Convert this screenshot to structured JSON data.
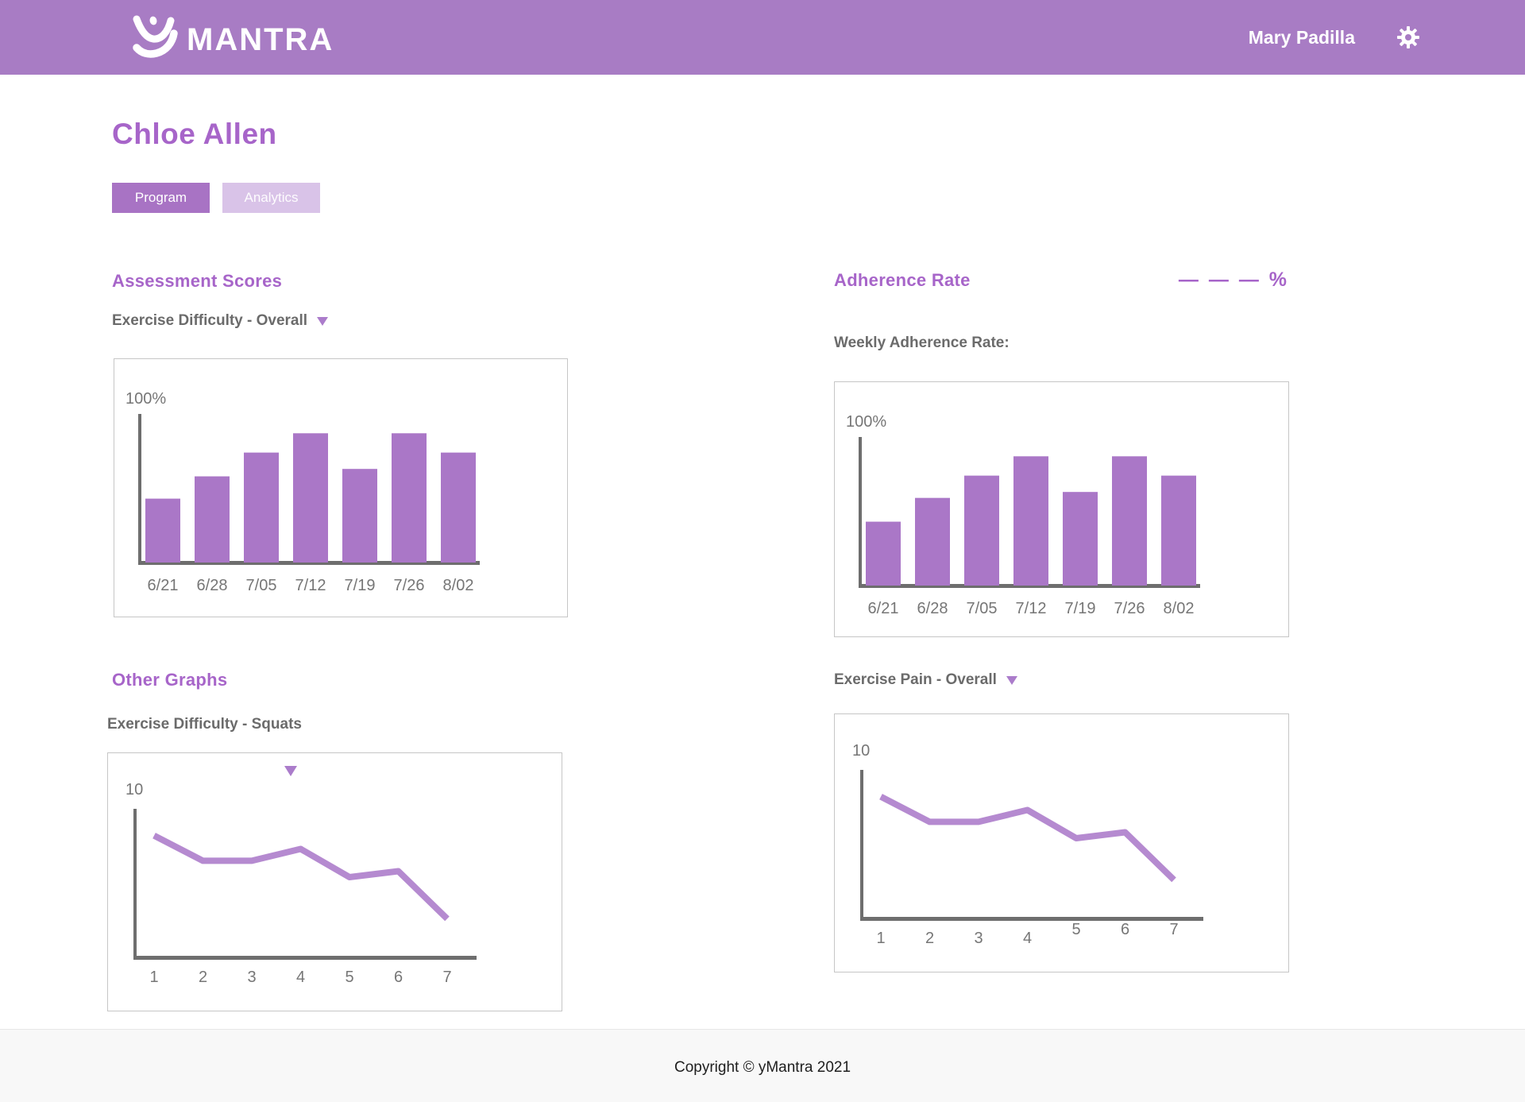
{
  "header": {
    "brand": "MANTRA",
    "user_name": "Mary Padilla"
  },
  "page_title": "Chloe Allen",
  "tabs": [
    {
      "label": "Program",
      "active": true
    },
    {
      "label": "Analytics",
      "active": false
    }
  ],
  "sections": {
    "assessment_heading": "Assessment Scores",
    "assessment_dropdown": "Exercise Difficulty - Overall",
    "adherence_heading": "Adherence Rate",
    "adherence_value": "— — — %",
    "adherence_sublabel": "Weekly Adherence Rate:",
    "other_heading": "Other Graphs",
    "squats_label": "Exercise Difficulty - Squats",
    "pain_dropdown": "Exercise Pain - Overall"
  },
  "footer": {
    "copyright": "Copyright © yMantra 2021"
  },
  "colors": {
    "header_bg": "#a87cc4",
    "accent": "#a765c9",
    "tab_active": "#a873c4",
    "tab_inactive": "#d9c3e8",
    "bar_fill": "#aa77c7",
    "line_stroke": "#b58ad0",
    "axis": "#6e6e6e",
    "tick_text": "#767676",
    "label_text": "#6b6b6b",
    "chart_border": "#c6c6c6",
    "footer_bg": "#f8f8f8",
    "footer_text": "#1e1e1e"
  },
  "chart_data": [
    {
      "id": "exercise_difficulty_overall",
      "type": "bar",
      "title": "Exercise Difficulty - Overall",
      "categories": [
        "6/21",
        "6/28",
        "7/05",
        "7/12",
        "7/19",
        "7/26",
        "8/02"
      ],
      "values": [
        43,
        58,
        74,
        87,
        63,
        87,
        74
      ],
      "ylabel": "100%",
      "ylim": [
        0,
        100
      ],
      "grid": false,
      "legend": "none"
    },
    {
      "id": "weekly_adherence_rate",
      "type": "bar",
      "title": "Weekly Adherence Rate",
      "categories": [
        "6/21",
        "6/28",
        "7/05",
        "7/12",
        "7/19",
        "7/26",
        "8/02"
      ],
      "values": [
        43,
        59,
        74,
        87,
        63,
        87,
        74
      ],
      "ylabel": "100%",
      "ylim": [
        0,
        100
      ],
      "grid": false,
      "legend": "none"
    },
    {
      "id": "exercise_difficulty_squats",
      "type": "line",
      "title": "Exercise Difficulty - Squats",
      "x": [
        1,
        2,
        3,
        4,
        5,
        6,
        7
      ],
      "values": [
        8.2,
        6.5,
        6.5,
        7.3,
        5.4,
        5.8,
        2.6
      ],
      "ylabel": "10",
      "ylim": [
        0,
        10
      ],
      "grid": false,
      "legend": "none"
    },
    {
      "id": "exercise_pain_overall",
      "type": "line",
      "title": "Exercise Pain - Overall",
      "x": [
        1,
        2,
        3,
        4,
        5,
        6,
        7
      ],
      "values": [
        8.2,
        6.5,
        6.5,
        7.3,
        5.4,
        5.8,
        2.6
      ],
      "ylabel": "10",
      "ylim": [
        0,
        10
      ],
      "grid": false,
      "legend": "none"
    }
  ]
}
